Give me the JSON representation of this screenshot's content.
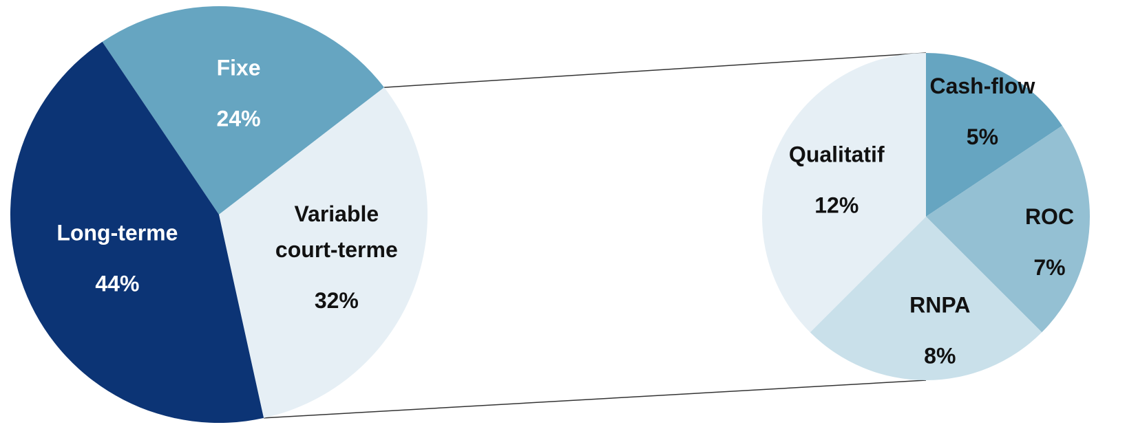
{
  "chart_data": [
    {
      "type": "pie",
      "title": "",
      "slices": [
        {
          "label": [
            "Fixe"
          ],
          "value": 24,
          "value_label": "24%",
          "color": "#66a5c1",
          "text_color": "#ffffff"
        },
        {
          "label": [
            "Variable",
            "court-terme"
          ],
          "value": 32,
          "value_label": "32%",
          "color": "#e6eff5",
          "text_color": "#111111"
        },
        {
          "label": [
            "Long-terme"
          ],
          "value": 44,
          "value_label": "44%",
          "color": "#0c3475",
          "text_color": "#ffffff"
        }
      ]
    },
    {
      "type": "pie",
      "title": "",
      "slices": [
        {
          "label": [
            "Cash-flow"
          ],
          "value": 5,
          "value_label": "5%",
          "color": "#66a5c1",
          "text_color": "#111111"
        },
        {
          "label": [
            "ROC"
          ],
          "value": 7,
          "value_label": "7%",
          "color": "#94c0d3",
          "text_color": "#111111"
        },
        {
          "label": [
            "RNPA"
          ],
          "value": 8,
          "value_label": "8%",
          "color": "#c9e0ea",
          "text_color": "#111111"
        },
        {
          "label": [
            "Qualitatif"
          ],
          "value": 12,
          "value_label": "12%",
          "color": "#e6eff5",
          "text_color": "#111111"
        }
      ]
    }
  ],
  "colors": {
    "connector": "#333333",
    "background": "#ffffff"
  }
}
